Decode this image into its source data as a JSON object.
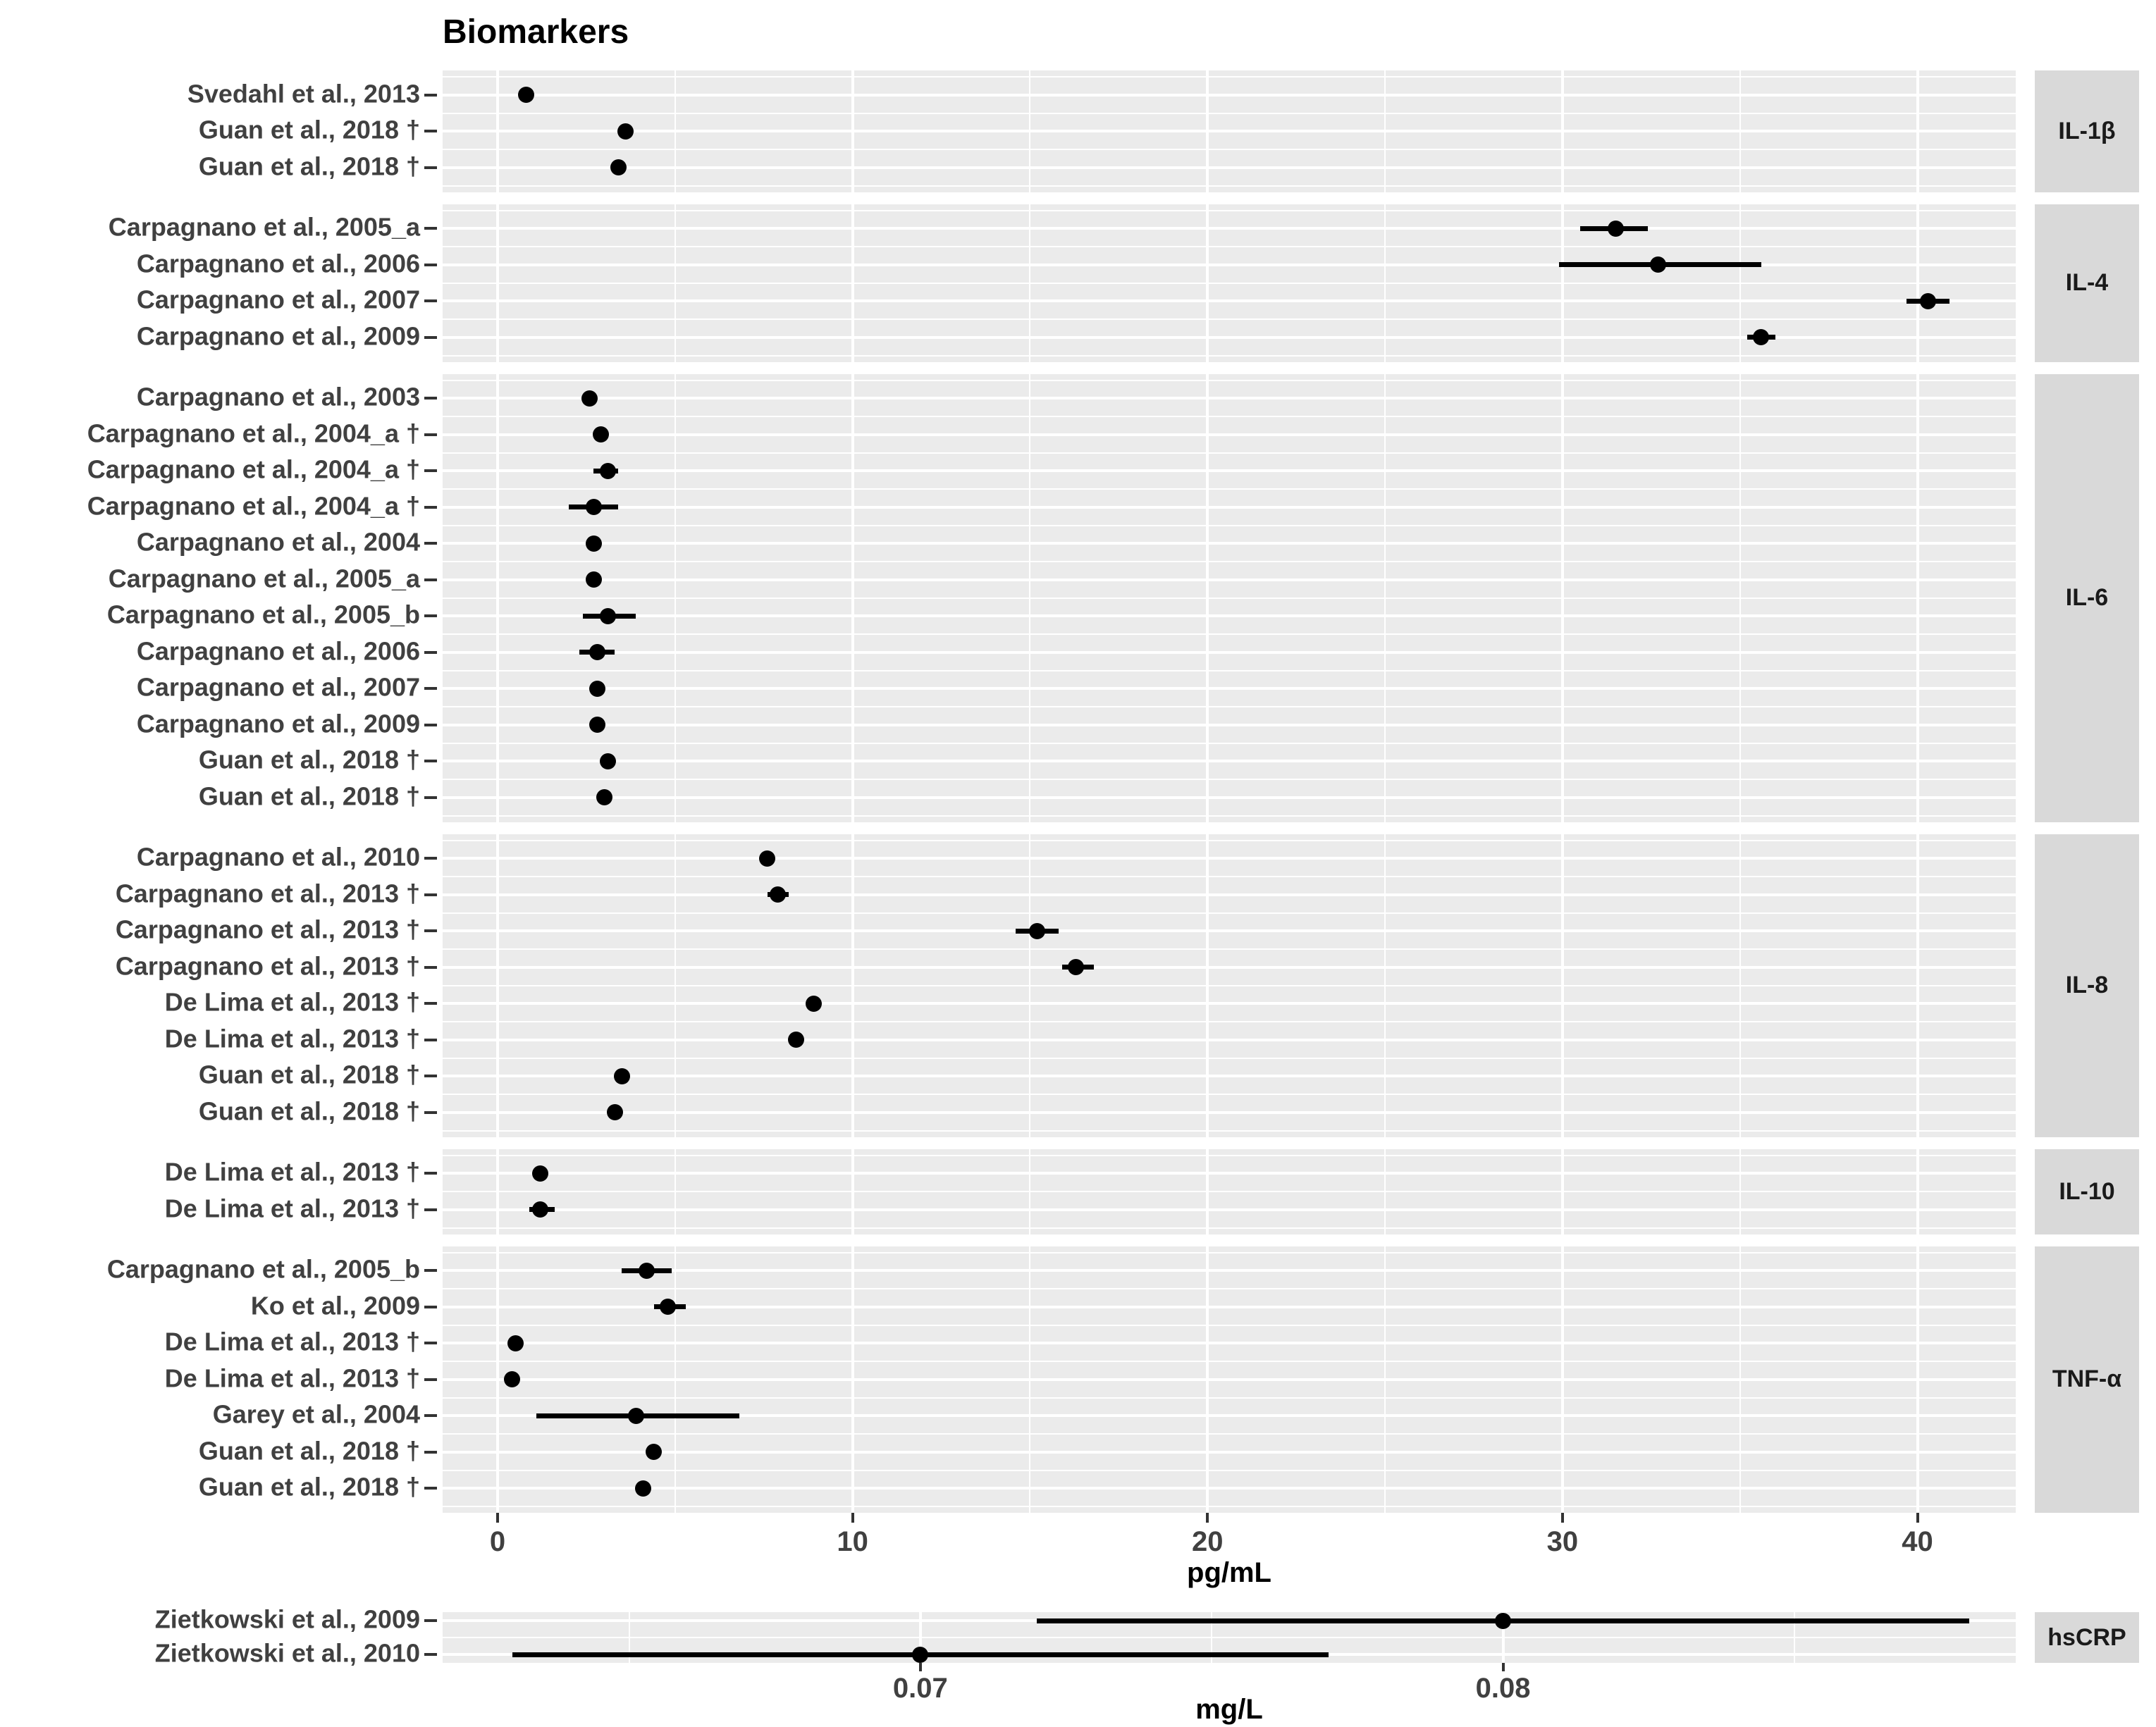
{
  "title": "Biomarkers",
  "colors": {
    "panel_background": "#EBEBEB",
    "strip_background": "#D9D9D9",
    "gridline": "#FFFFFF",
    "point": "#000000",
    "axis_text": "#404040",
    "axis_title_text": "#000000",
    "title_text": "#000000"
  },
  "chart_data": {
    "type": "scatter",
    "variant": "faceted-forest-plot-with-error-bars",
    "legend": "none",
    "grid": "on",
    "x_axis_main": {
      "title": "pg/mL",
      "ticks": [
        0,
        10,
        20,
        30,
        40
      ],
      "tick_labels": [
        "0",
        "10",
        "20",
        "30",
        "40"
      ],
      "minor_ticks": [
        5,
        15,
        25,
        35
      ],
      "domain": [
        -1.55,
        42.77
      ]
    },
    "x_axis_hscrp": {
      "title": "mg/L",
      "ticks": [
        0.07,
        0.08
      ],
      "tick_labels": [
        "0.07",
        "0.08"
      ],
      "minor_ticks": [
        0.065,
        0.075,
        0.085
      ],
      "domain": [
        0.0618,
        0.0888
      ]
    },
    "facets": [
      {
        "label": "IL-1β",
        "unit": "pg/mL",
        "rows": [
          {
            "study": "Svedahl et al., 2013",
            "value": 0.8,
            "ci": [
              0.8,
              0.8
            ]
          },
          {
            "study": "Guan et al., 2018 †",
            "value": 3.6,
            "ci": [
              3.6,
              3.6
            ]
          },
          {
            "study": "Guan et al., 2018 †",
            "value": 3.4,
            "ci": [
              3.4,
              3.4
            ]
          }
        ]
      },
      {
        "label": "IL-4",
        "unit": "pg/mL",
        "rows": [
          {
            "study": "Carpagnano et al., 2005_a",
            "value": 31.5,
            "ci": [
              30.5,
              32.4
            ]
          },
          {
            "study": "Carpagnano et al., 2006",
            "value": 32.7,
            "ci": [
              29.9,
              35.6
            ]
          },
          {
            "study": "Carpagnano et al., 2007",
            "value": 40.3,
            "ci": [
              39.7,
              40.9
            ]
          },
          {
            "study": "Carpagnano et al., 2009",
            "value": 35.6,
            "ci": [
              35.2,
              36.0
            ]
          }
        ]
      },
      {
        "label": "IL-6",
        "unit": "pg/mL",
        "rows": [
          {
            "study": "Carpagnano et al., 2003",
            "value": 2.6,
            "ci": [
              2.6,
              2.6
            ]
          },
          {
            "study": "Carpagnano et al., 2004_a †",
            "value": 2.9,
            "ci": [
              2.9,
              2.9
            ]
          },
          {
            "study": "Carpagnano et al., 2004_a †",
            "value": 3.1,
            "ci": [
              2.7,
              3.4
            ]
          },
          {
            "study": "Carpagnano et al., 2004_a †",
            "value": 2.7,
            "ci": [
              2.0,
              3.4
            ]
          },
          {
            "study": "Carpagnano et al., 2004",
            "value": 2.7,
            "ci": [
              2.7,
              2.7
            ]
          },
          {
            "study": "Carpagnano et al., 2005_a",
            "value": 2.7,
            "ci": [
              2.7,
              2.7
            ]
          },
          {
            "study": "Carpagnano et al., 2005_b",
            "value": 3.1,
            "ci": [
              2.4,
              3.9
            ]
          },
          {
            "study": "Carpagnano et al., 2006",
            "value": 2.8,
            "ci": [
              2.3,
              3.3
            ]
          },
          {
            "study": "Carpagnano et al., 2007",
            "value": 2.8,
            "ci": [
              2.8,
              2.8
            ]
          },
          {
            "study": "Carpagnano et al., 2009",
            "value": 2.8,
            "ci": [
              2.8,
              2.8
            ]
          },
          {
            "study": "Guan et al., 2018 †",
            "value": 3.1,
            "ci": [
              3.1,
              3.1
            ]
          },
          {
            "study": "Guan et al., 2018 †",
            "value": 3.0,
            "ci": [
              3.0,
              3.0
            ]
          }
        ]
      },
      {
        "label": "IL-8",
        "unit": "pg/mL",
        "rows": [
          {
            "study": "Carpagnano et al., 2010",
            "value": 7.6,
            "ci": [
              7.6,
              7.6
            ]
          },
          {
            "study": "Carpagnano et al., 2013 †",
            "value": 7.9,
            "ci": [
              7.6,
              8.2
            ]
          },
          {
            "study": "Carpagnano et al., 2013 †",
            "value": 15.2,
            "ci": [
              14.6,
              15.8
            ]
          },
          {
            "study": "Carpagnano et al., 2013 †",
            "value": 16.3,
            "ci": [
              15.9,
              16.8
            ]
          },
          {
            "study": "De Lima et al., 2013 †",
            "value": 8.9,
            "ci": [
              8.9,
              8.9
            ]
          },
          {
            "study": "De Lima et al., 2013 †",
            "value": 8.4,
            "ci": [
              8.4,
              8.4
            ]
          },
          {
            "study": "Guan et al., 2018 †",
            "value": 3.5,
            "ci": [
              3.5,
              3.5
            ]
          },
          {
            "study": "Guan et al., 2018 †",
            "value": 3.3,
            "ci": [
              3.3,
              3.3
            ]
          }
        ]
      },
      {
        "label": "IL-10",
        "unit": "pg/mL",
        "rows": [
          {
            "study": "De Lima et al., 2013 †",
            "value": 1.2,
            "ci": [
              1.2,
              1.2
            ]
          },
          {
            "study": "De Lima et al., 2013 †",
            "value": 1.2,
            "ci": [
              0.9,
              1.6
            ]
          }
        ]
      },
      {
        "label": "TNF-α",
        "unit": "pg/mL",
        "rows": [
          {
            "study": "Carpagnano et al., 2005_b",
            "value": 4.2,
            "ci": [
              3.5,
              4.9
            ]
          },
          {
            "study": "Ko et al., 2009",
            "value": 4.8,
            "ci": [
              4.4,
              5.3
            ]
          },
          {
            "study": "De Lima et al., 2013 †",
            "value": 0.5,
            "ci": [
              0.5,
              0.5
            ]
          },
          {
            "study": "De Lima et al., 2013 †",
            "value": 0.4,
            "ci": [
              0.4,
              0.4
            ]
          },
          {
            "study": "Garey et al., 2004",
            "value": 3.9,
            "ci": [
              1.1,
              6.8
            ]
          },
          {
            "study": "Guan et al., 2018 †",
            "value": 4.4,
            "ci": [
              4.4,
              4.4
            ]
          },
          {
            "study": "Guan et al., 2018 †",
            "value": 4.1,
            "ci": [
              4.1,
              4.1
            ]
          }
        ]
      },
      {
        "label": "hsCRP",
        "unit": "mg/L",
        "rows": [
          {
            "study": "Zietkowski et al., 2009",
            "value": 0.08,
            "ci": [
              0.072,
              0.088
            ]
          },
          {
            "study": "Zietkowski et al., 2010",
            "value": 0.07,
            "ci": [
              0.063,
              0.077
            ]
          }
        ]
      }
    ]
  }
}
